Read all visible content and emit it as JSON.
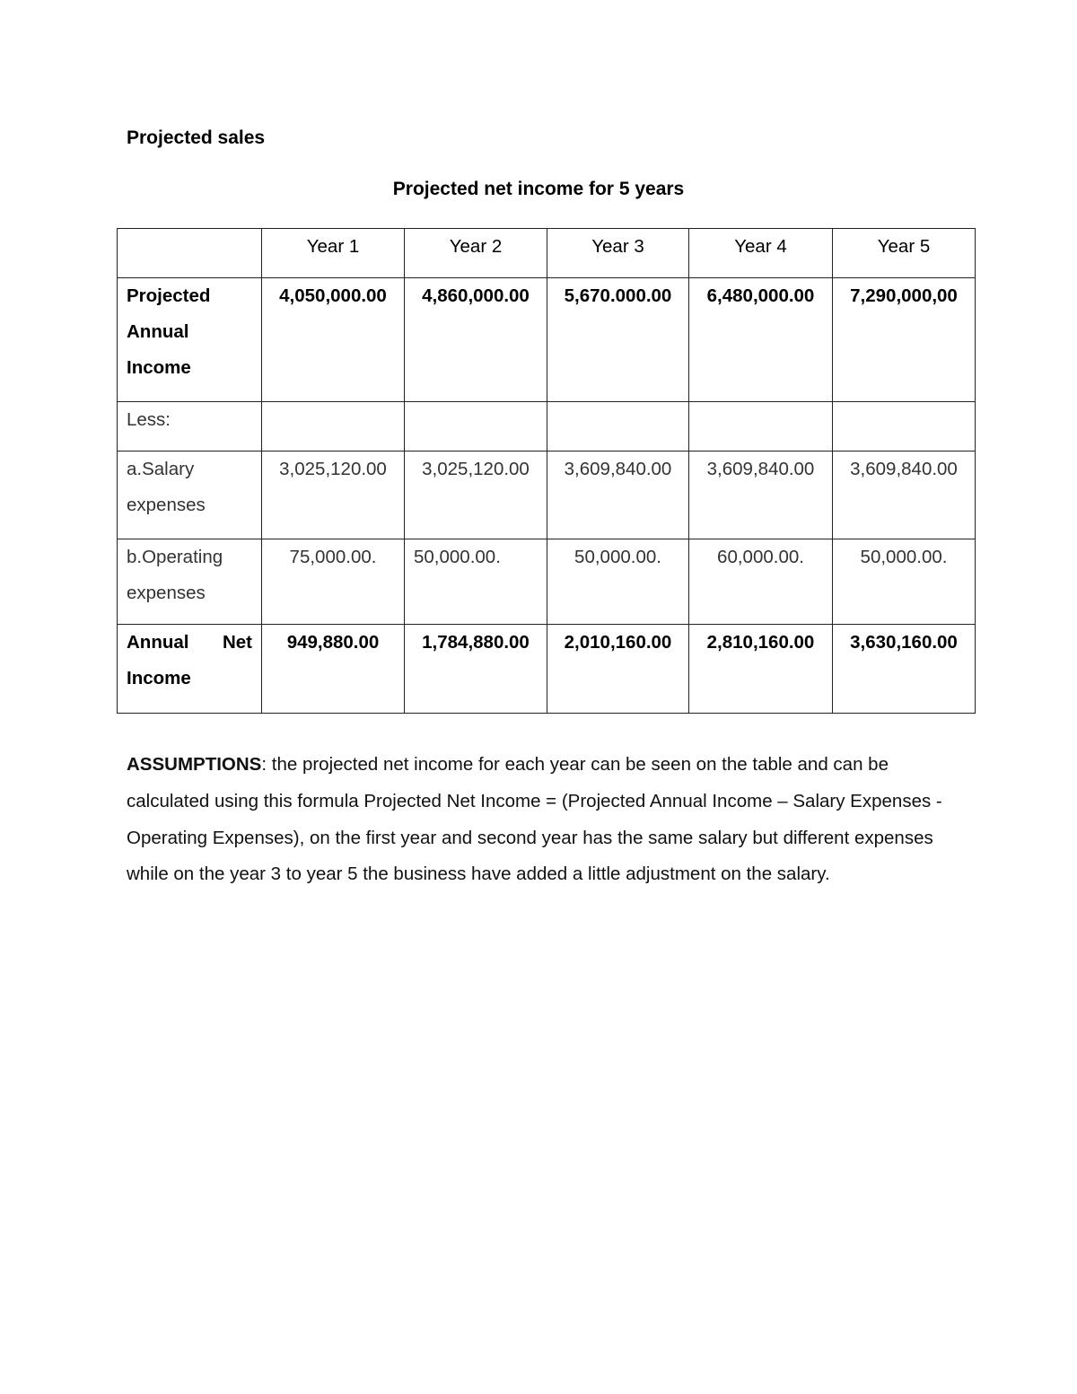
{
  "heading": "Projected sales",
  "table_title": "Projected net income for 5 years",
  "table": {
    "columns": [
      "",
      "Year 1",
      "Year 2",
      "Year 3",
      "Year 4",
      "Year 5"
    ],
    "rows": [
      {
        "label": [
          "Projected",
          "Annual",
          "Income"
        ],
        "values": [
          "4,050,000.00",
          "4,860,000.00",
          "5,670.000.00",
          "6,480,000.00",
          "7,290,000,00"
        ],
        "bold": true
      },
      {
        "label": [
          "Less:"
        ],
        "values": [
          "",
          "",
          "",
          "",
          ""
        ],
        "bold": false
      },
      {
        "label": [
          "a.Salary",
          "expenses"
        ],
        "values": [
          "3,025,120.00",
          "3,025,120.00",
          "3,609,840.00",
          "3,609,840.00",
          "3,609,840.00"
        ],
        "bold": false
      },
      {
        "label": [
          "b.Operating",
          "expenses"
        ],
        "values": [
          "75,000.00.",
          "50,000.00.",
          "50,000.00.",
          "60,000.00.",
          "50,000.00."
        ],
        "bold": false
      },
      {
        "label": [
          "Annual",
          "Net",
          "Income"
        ],
        "values": [
          "949,880.00",
          "1,784,880.00",
          "2,010,160.00",
          "2,810,160.00",
          "3,630,160.00"
        ],
        "bold": true
      }
    ]
  },
  "assumptions": {
    "label": "ASSUMPTIONS",
    "text": ": the projected net income for each year can be seen on the table and can be calculated using this formula Projected Net Income = (Projected Annual Income – Salary Expenses - Operating Expenses), on the first year and second year has the same salary but different expenses while on the year 3 to year 5 the business have added a little adjustment on the salary."
  }
}
